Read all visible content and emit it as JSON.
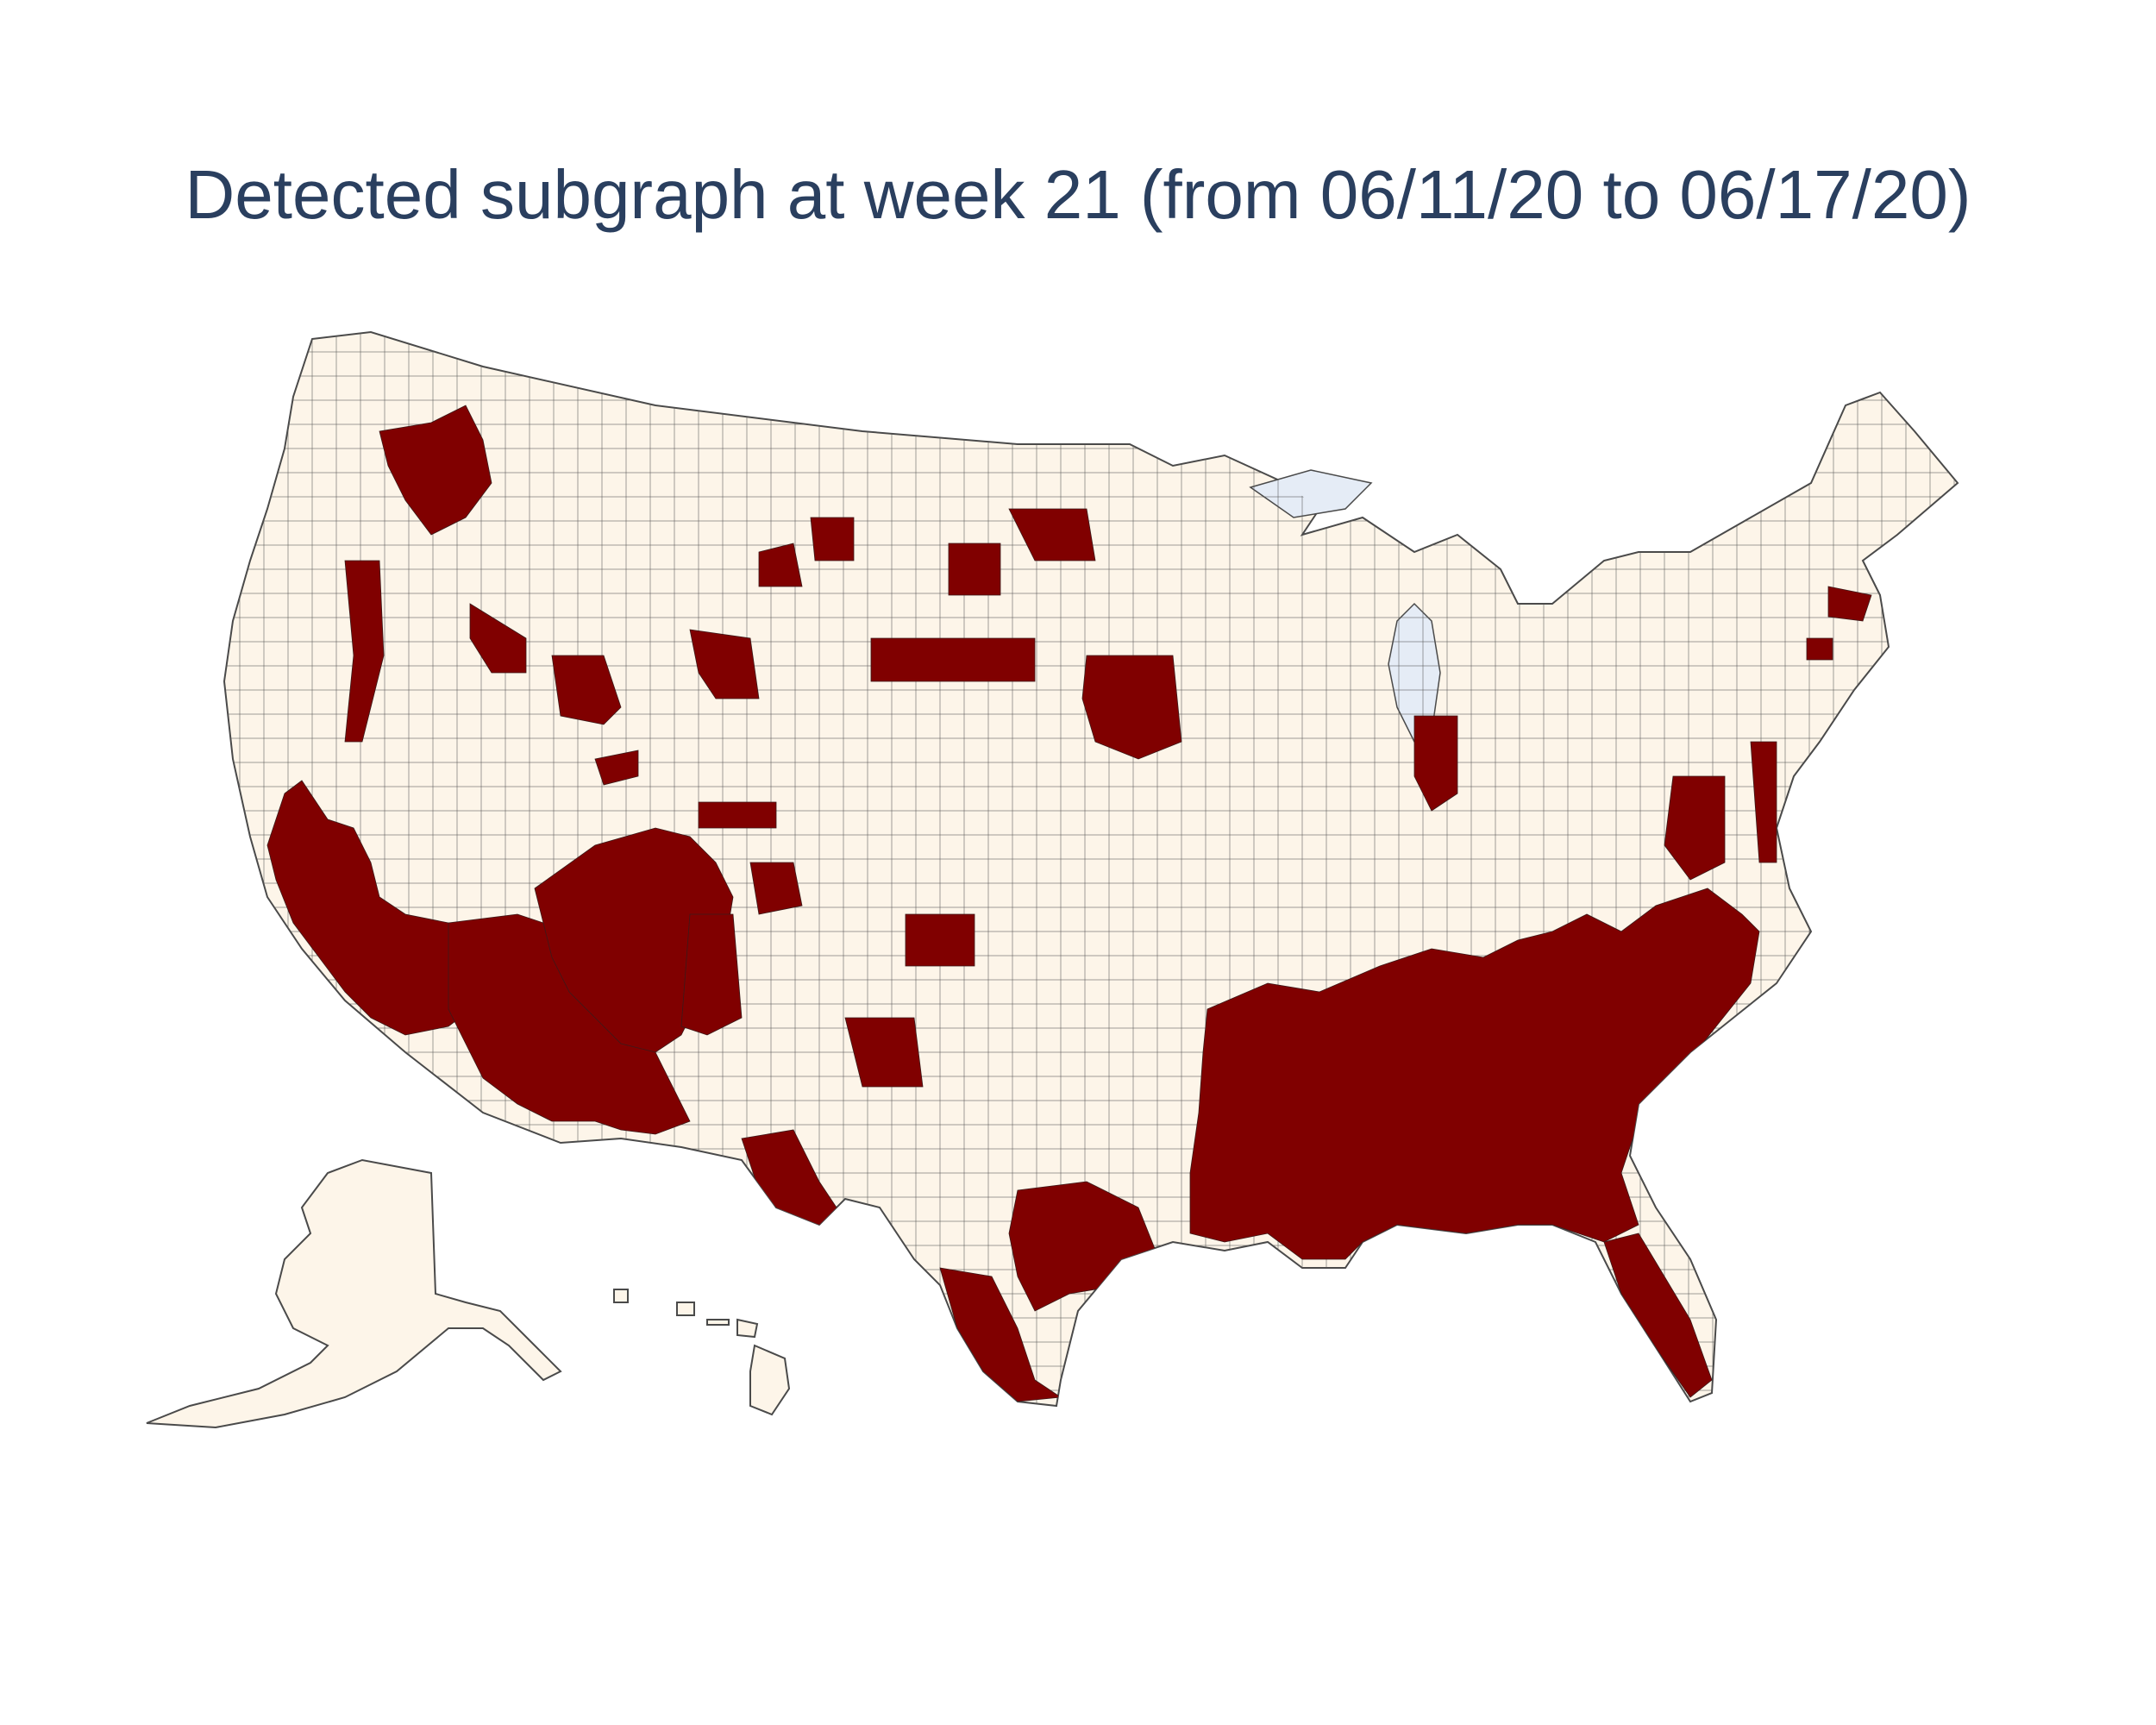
{
  "title": "Detected subgraph at week 21 (from 06/11/20 to 06/17/20)",
  "colors": {
    "title": "#2a3f5f",
    "land": "#fdf5e9",
    "highlight": "#800000",
    "border": "#4a4a4a",
    "water": "#e5ecf6"
  },
  "map": {
    "projection": "albers-usa",
    "regions_shown": [
      "contiguous-us",
      "alaska",
      "hawaii"
    ],
    "unit": "county",
    "highlighted_region_desc": "counties in detected subgraph"
  }
}
